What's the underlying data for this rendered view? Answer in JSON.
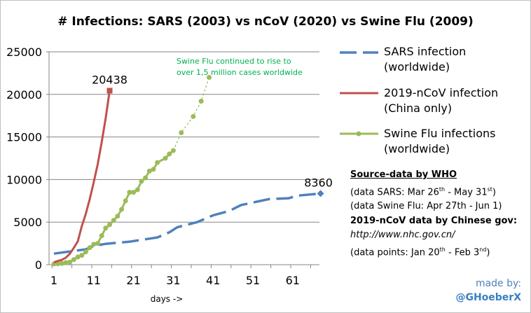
{
  "chart_data": {
    "type": "line",
    "title": "# Infections: SARS (2003) vs nCoV (2020) vs Swine Flu (2009)",
    "xlabel": "days ->",
    "ylabel": "",
    "xlim": [
      0,
      69
    ],
    "ylim": [
      0,
      25000
    ],
    "x_ticks": [
      1,
      11,
      21,
      31,
      41,
      51,
      61
    ],
    "y_ticks": [
      0,
      5000,
      10000,
      15000,
      20000,
      25000
    ],
    "grid": "horizontal",
    "legend_placement": "right",
    "series": [
      {
        "name": "SARS infection (worldwide)",
        "color": "#4f81bd",
        "style": "dashed",
        "x": [
          1,
          5,
          9,
          11,
          14,
          20,
          27,
          30,
          32,
          37,
          41,
          45,
          48,
          52,
          55,
          60,
          62,
          68
        ],
        "y": [
          1300,
          1550,
          1800,
          2200,
          2450,
          2700,
          3200,
          3800,
          4400,
          5000,
          5800,
          6300,
          7000,
          7400,
          7700,
          7800,
          8100,
          8360
        ],
        "end_label": "8360"
      },
      {
        "name": "2019-nCoV infection (China only)",
        "color": "#c0504d",
        "style": "solid",
        "x": [
          1,
          2,
          3,
          4,
          5,
          6,
          7,
          8,
          9,
          10,
          11,
          12,
          13,
          14,
          15
        ],
        "y": [
          280,
          440,
          570,
          830,
          1290,
          1980,
          2740,
          4520,
          5970,
          7710,
          9690,
          11790,
          14380,
          17200,
          20438
        ],
        "end_label": "20438"
      },
      {
        "name": "Swine Flu infections (worldwide)",
        "color": "#9bbb59",
        "style": "solid-then-dotted",
        "x": [
          1,
          2,
          3,
          4,
          5,
          6,
          7,
          8,
          9,
          10,
          11,
          12,
          13,
          14,
          15,
          16,
          17,
          18,
          19,
          20,
          21,
          22,
          23,
          24,
          25,
          26,
          27,
          29,
          30,
          31,
          33,
          36,
          38,
          40
        ],
        "y": [
          80,
          100,
          150,
          250,
          300,
          600,
          900,
          1100,
          1500,
          2000,
          2400,
          2500,
          3400,
          4300,
          4700,
          5200,
          5700,
          6500,
          7500,
          8500,
          8500,
          8800,
          9800,
          10200,
          11000,
          11200,
          12000,
          12500,
          13000,
          13400,
          15500,
          17400,
          19200,
          22000
        ],
        "dotted_from_x": 31
      }
    ],
    "annotations": [
      "Swine Flu continued to rise to",
      "over 1,5 million cases worldwide"
    ]
  },
  "legend": [
    {
      "line1": "SARS infection",
      "line2": "(worldwide)"
    },
    {
      "line1": "2019-nCoV infection",
      "line2": "(China only)"
    },
    {
      "line1": "Swine Flu infections",
      "line2": "(worldwide)"
    }
  ],
  "source": {
    "heading": "Source-data  by WHO",
    "sars_pre": "(data SARS: Mar 26",
    "sars_sup1": "th",
    "sars_mid": " - May 31",
    "sars_sup2": "st",
    "sars_post": ")",
    "swine": "(data Swine Flu: Apr 27th - Jun 1)",
    "ncov_heading": "2019-nCoV data by Chinese gov:",
    "url": "http://www.nhc.gov.cn/",
    "pts_pre": "(data points: Jan 20",
    "pts_sup1": "th",
    "pts_mid": " - Feb 3",
    "pts_sup2": "nd",
    "pts_post": ")"
  },
  "credit": {
    "line1": "made by:",
    "line2": "@GHoeberX"
  }
}
